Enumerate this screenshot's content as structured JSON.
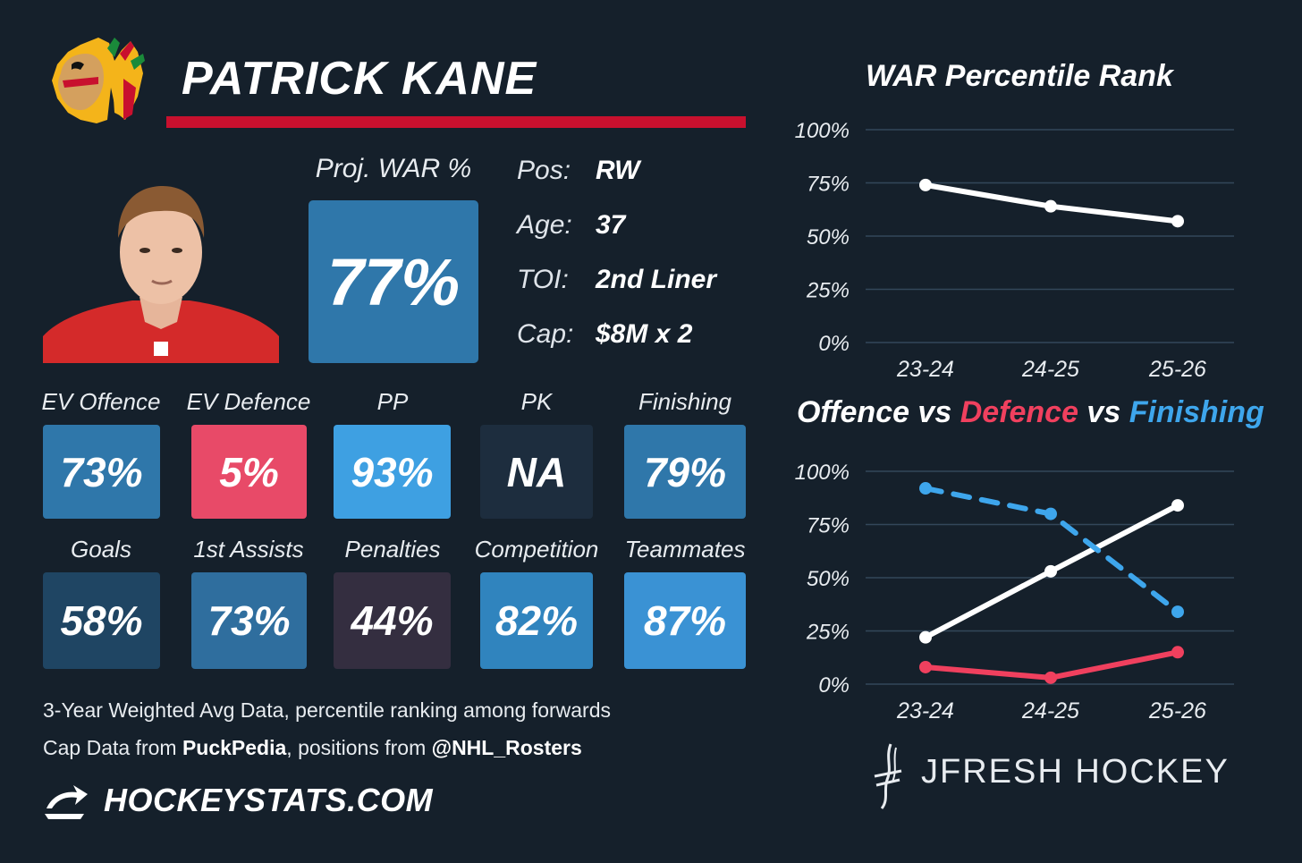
{
  "player": {
    "name": "PATRICK KANE",
    "proj_war_label": "Proj. WAR %",
    "proj_war_value": "77%"
  },
  "info": [
    {
      "key": "Pos:",
      "value": "RW"
    },
    {
      "key": "Age:",
      "value": "37"
    },
    {
      "key": "TOI:",
      "value": "2nd Liner"
    },
    {
      "key": "Cap:",
      "value": "$8M x 2"
    }
  ],
  "tiles": [
    {
      "label": "EV Offence",
      "value": "73%",
      "color": "#2f77aa"
    },
    {
      "label": "EV Defence",
      "value": "5%",
      "color": "#e84a68"
    },
    {
      "label": "PP",
      "value": "93%",
      "color": "#3ea0e2"
    },
    {
      "label": "PK",
      "value": "NA",
      "color": "#1d2d3e"
    },
    {
      "label": "Finishing",
      "value": "79%",
      "color": "#2f77aa"
    },
    {
      "label": "Goals",
      "value": "58%",
      "color": "#1f4563"
    },
    {
      "label": "1st Assists",
      "value": "73%",
      "color": "#2f6e9e"
    },
    {
      "label": "Penalties",
      "value": "44%",
      "color": "#342e40"
    },
    {
      "label": "Competition",
      "value": "82%",
      "color": "#3084be"
    },
    {
      "label": "Teammates",
      "value": "87%",
      "color": "#3a92d4"
    }
  ],
  "footer": {
    "line1": "3-Year Weighted Avg Data, percentile ranking among forwards",
    "line2_prefix": "Cap Data from ",
    "line2_source": "PuckPedia",
    "line2_mid": ", positions from ",
    "line2_handle": "@NHL_Rosters",
    "brand": "HOCKEYSTATS.COM"
  },
  "watermark": "JFRESH HOCKEY",
  "colors": {
    "background": "#15202b",
    "accent_red": "#c8102e",
    "defence": "#f0405e",
    "finishing": "#3ea6ec",
    "offence": "#ffffff",
    "grid": "#33475a"
  },
  "chart_data": [
    {
      "type": "line",
      "title": "WAR Percentile Rank",
      "categories": [
        "23-24",
        "24-25",
        "25-26"
      ],
      "yticks": [
        "0%",
        "25%",
        "50%",
        "75%",
        "100%"
      ],
      "ylim": [
        0,
        100
      ],
      "grid": true,
      "series": [
        {
          "values": [
            74,
            64,
            57
          ],
          "color": "#ffffff",
          "dashed": false
        }
      ]
    },
    {
      "type": "line",
      "title_parts": [
        {
          "text": "Offence",
          "color": "#ffffff"
        },
        {
          "text": " vs ",
          "color": "#ffffff"
        },
        {
          "text": "Defence",
          "color": "#f0405e"
        },
        {
          "text": " vs ",
          "color": "#ffffff"
        },
        {
          "text": "Finishing",
          "color": "#3ea6ec"
        }
      ],
      "categories": [
        "23-24",
        "24-25",
        "25-26"
      ],
      "yticks": [
        "0%",
        "25%",
        "50%",
        "75%",
        "100%"
      ],
      "ylim": [
        0,
        100
      ],
      "grid": true,
      "series": [
        {
          "values": [
            22,
            53,
            84
          ],
          "color": "#ffffff",
          "dashed": false
        },
        {
          "values": [
            8,
            3,
            15
          ],
          "color": "#f0405e",
          "dashed": false
        },
        {
          "values": [
            92,
            80,
            34
          ],
          "color": "#3ea6ec",
          "dashed": true
        }
      ]
    }
  ]
}
